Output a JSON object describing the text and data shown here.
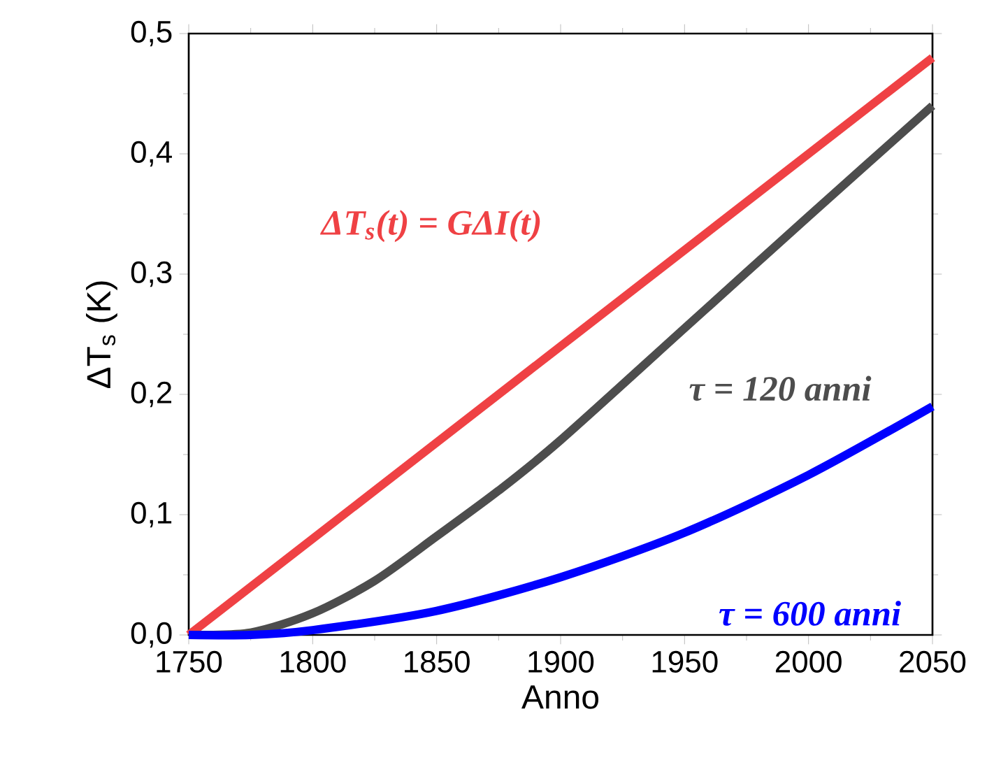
{
  "chart_data": {
    "type": "line",
    "xlabel": "Anno",
    "ylabel": "ΔT$_{s}$ (K)",
    "xlim": [
      1750,
      2050
    ],
    "ylim": [
      0,
      0.5
    ],
    "xticks": [
      1750,
      1800,
      1850,
      1900,
      1950,
      2000,
      2050
    ],
    "yticks": [
      {
        "value": 0,
        "label": "0,0"
      },
      {
        "value": 0.1,
        "label": "0,1"
      },
      {
        "value": 0.2,
        "label": "0,2"
      },
      {
        "value": 0.3,
        "label": "0,3"
      },
      {
        "value": 0.4,
        "label": "0,4"
      },
      {
        "value": 0.5,
        "label": "0,5"
      }
    ],
    "grid": false,
    "legend": false,
    "line_style": "solid",
    "marker": "none",
    "series": [
      {
        "name": "ΔT$_{s}$(t) = GΔI(t)",
        "color": "#ef4144",
        "x": [
          1750,
          2050
        ],
        "values": [
          0,
          0.48
        ]
      },
      {
        "name": "τ = 120 anni",
        "color": "#4d4d4d",
        "x": [
          1750,
          1775,
          1800,
          1825,
          1850,
          1875,
          1900,
          1950,
          2000,
          2050
        ],
        "values": [
          0,
          0.002,
          0.018,
          0.045,
          0.082,
          0.12,
          0.162,
          0.255,
          0.348,
          0.44
        ]
      },
      {
        "name": "τ = 600 anni",
        "color": "#0000ff",
        "x": [
          1750,
          1775,
          1800,
          1850,
          1900,
          1950,
          2000,
          2050
        ],
        "values": [
          0,
          0,
          0.004,
          0.02,
          0.048,
          0.085,
          0.133,
          0.19
        ]
      }
    ]
  }
}
